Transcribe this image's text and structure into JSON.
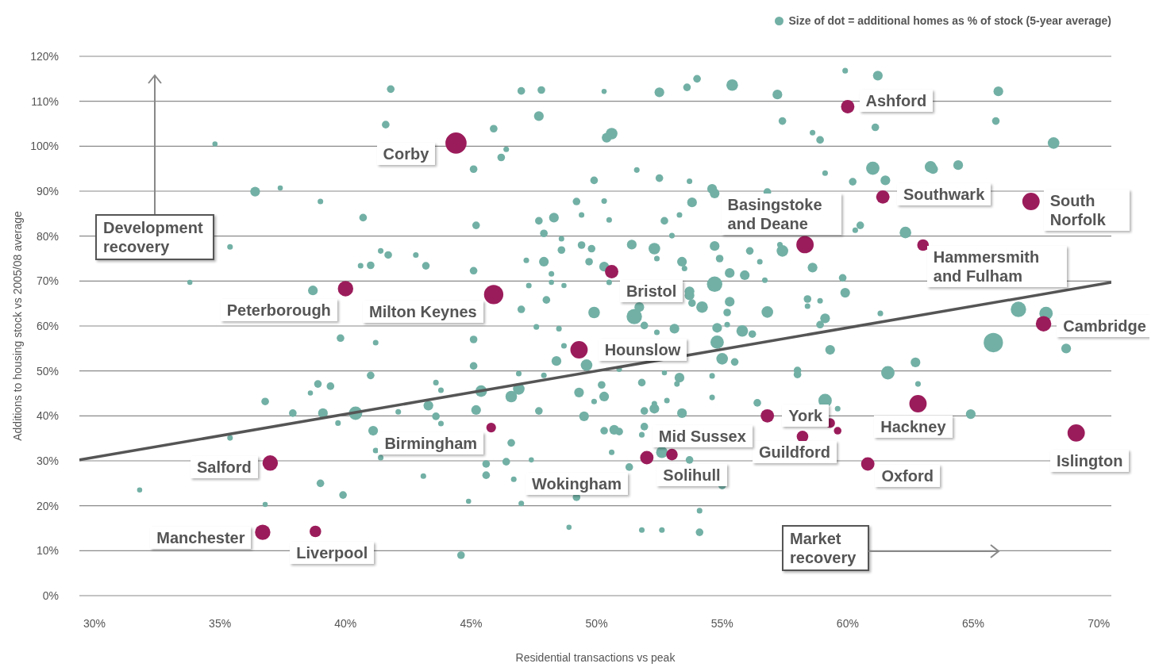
{
  "chart_data": {
    "type": "bubble",
    "xlabel": "Residential transactions vs peak",
    "ylabel": "Additions to housing stock vs 2005/08 average",
    "xlim": [
      29.4,
      70.5
    ],
    "ylim": [
      0,
      120
    ],
    "xticks": [
      {
        "value": 30,
        "label": "30%"
      },
      {
        "value": 35,
        "label": "35%"
      },
      {
        "value": 40,
        "label": "40%"
      },
      {
        "value": 45,
        "label": "45%"
      },
      {
        "value": 50,
        "label": "50%"
      },
      {
        "value": 55,
        "label": "55%"
      },
      {
        "value": 60,
        "label": "60%"
      },
      {
        "value": 65,
        "label": "65%"
      },
      {
        "value": 70,
        "label": "70%"
      }
    ],
    "yticks": [
      {
        "value": 0,
        "label": "0%"
      },
      {
        "value": 10,
        "label": "10%"
      },
      {
        "value": 20,
        "label": "20%"
      },
      {
        "value": 30,
        "label": "30%"
      },
      {
        "value": 40,
        "label": "40%"
      },
      {
        "value": 50,
        "label": "50%"
      },
      {
        "value": 60,
        "label": "60%"
      },
      {
        "value": 70,
        "label": "70%"
      },
      {
        "value": 80,
        "label": "80%"
      },
      {
        "value": 90,
        "label": "90%"
      },
      {
        "value": 100,
        "label": "100%"
      },
      {
        "value": 110,
        "label": "110%"
      },
      {
        "value": 120,
        "label": "120%"
      }
    ],
    "grid": "y",
    "legend": "top right",
    "series": [
      {
        "name": "Size of dot = additional homes as % of stock (5-year average)",
        "color": "#72b0a5",
        "x": [
          31.8,
          34.8,
          33.8,
          35.4,
          36.4,
          37.4,
          35.4,
          36.8,
          36.8,
          37.9,
          38.7,
          39.0,
          38.6,
          38.9,
          39.1,
          39.4,
          39.7,
          39.8,
          39.0,
          39.9,
          40.4,
          40.7,
          40.6,
          41.0,
          41.0,
          41.1,
          41.2,
          41.4,
          41.7,
          41.2,
          41.4,
          41.6,
          41.8,
          42.1,
          42.8,
          43.2,
          43.1,
          43.3,
          43.6,
          43.6,
          43.8,
          43.8,
          44.6,
          44.9,
          45.1,
          45.2,
          45.1,
          45.1,
          45.1,
          45.2,
          45.4,
          45.6,
          45.6,
          45.9,
          46.4,
          46.2,
          46.4,
          46.6,
          46.6,
          46.9,
          46.7,
          46.9,
          47.0,
          47.0,
          47.0,
          47.2,
          47.3,
          47.4,
          47.6,
          47.7,
          47.7,
          47.8,
          47.7,
          47.9,
          47.9,
          47.9,
          48.0,
          48.2,
          48.2,
          48.3,
          48.4,
          48.5,
          null,
          48.6,
          48.6,
          48.7,
          48.7,
          48.9,
          49.2,
          49.2,
          49.3,
          49.4,
          49.4,
          49.5,
          49.6,
          49.7,
          49.8,
          49.9,
          49.9,
          49.9,
          50.3,
          50.2,
          50.3,
          50.3,
          50.3,
          50.4,
          50.6,
          50.5,
          50.3,
          50.5,
          50.7,
          50.9,
          50.6,
          50.9,
          null,
          51.3,
          51.4,
          51.5,
          51.7,
          51.6,
          null,
          51.8,
          51.8,
          51.9,
          51.9,
          51.8,
          51.9,
          null,
          52.3,
          52.4,
          52.5,
          52.5,
          52.3,
          52.3,
          52.4,
          52.6,
          52.7,
          52.7,
          52.8,
          52.6,
          53.0,
          53.1,
          53.2,
          53.3,
          53.3,
          53.4,
          null,
          53.4,
          53.6,
          53.5,
          53.7,
          53.7,
          53.7,
          53.8,
          53.7,
          53.8,
          54.0,
          54.1,
          54.1,
          54.2,
          54.6,
          54.6,
          54.6,
          54.7,
          54.7,
          54.7,
          54.8,
          54.8,
          54.9,
          55.0,
          55.0,
          55.2,
          55.2,
          55.3,
          55.3,
          55.4,
          55.5,
          55.8,
          55.9,
          56.1,
          56.2,
          56.4,
          56.5,
          56.7,
          56.8,
          56.8,
          57.2,
          57.4,
          57.4,
          57.3,
          null,
          58.0,
          58.0,
          58.4,
          58.4,
          58.6,
          58.6,
          58.9,
          58.9,
          58.9,
          59.1,
          59.1,
          59.1,
          59.3,
          59.6,
          59.8,
          59.9,
          59.9,
          60.2,
          60.3,
          60.5,
          61.0,
          61.1,
          61.2,
          61.3,
          61.5,
          61.6,
          62.3,
          62.7,
          62.8,
          63.3,
          64.4,
          64.9,
          65.9,
          66.0,
          65.8,
          66.8,
          67.9,
          68.2,
          68.7,
          63.4
        ],
        "values": [
          23.5,
          100.5,
          69.7,
          77.6,
          89.9,
          90.7,
          35.1,
          43.2,
          20.3,
          40.6,
          67.9,
          87.7,
          45.1,
          47.1,
          40.6,
          46.6,
          38.4,
          57.3,
          25.0,
          22.4,
          40.6,
          84.1,
          73.4,
          73.5,
          49.0,
          36.7,
          32.3,
          76.7,
          75.8,
          56.3,
          30.7,
          104.8,
          112.7,
          40.9,
          75.8,
          73.4,
          26.6,
          42.3,
          39.9,
          47.4,
          38.3,
          45.7,
          9.0,
          21.0,
          72.3,
          82.4,
          94.9,
          57.0,
          51.1,
          41.3,
          45.5,
          29.3,
          26.8,
          103.9,
          99.3,
          97.5,
          29.8,
          34.0,
          44.3,
          46.0,
          25.9,
          49.4,
          63.7,
          112.3,
          20.5,
          74.6,
          69.0,
          30.2,
          59.8,
          41.1,
          106.7,
          112.5,
          83.4,
          74.3,
          49.0,
          80.6,
          65.8,
          71.6,
          69.7,
          84.1,
          52.2,
          59.4,
          null,
          76.9,
          79.4,
          69.0,
          55.6,
          15.2,
          87.7,
          21.9,
          45.2,
          78.0,
          84.7,
          39.9,
          51.3,
          74.3,
          77.2,
          63.0,
          43.2,
          92.4,
          87.8,
          46.9,
          44.3,
          36.7,
          112.2,
          101.9,
          102.8,
          83.6,
          73.2,
          69.7,
          36.9,
          36.5,
          31.9,
          50.4,
          null,
          28.6,
          78.1,
          62.1,
          64.2,
          94.7,
          null,
          35.8,
          14.6,
          37.6,
          41.1,
          47.4,
          60.1,
          null,
          77.2,
          75.0,
          112.0,
          92.9,
          41.6,
          42.7,
          58.6,
          14.6,
          83.4,
          49.6,
          43.4,
          31.9,
          80.1,
          59.4,
          47.1,
          84.7,
          48.5,
          40.6,
          null,
          74.3,
          113.1,
          72.8,
          66.8,
          30.2,
          67.7,
          65.1,
          92.2,
          87.5,
          115.0,
          14.1,
          18.9,
          64.2,
          48.9,
          44.1,
          90.5,
          89.5,
          69.3,
          77.8,
          59.6,
          56.4,
          75.0,
          52.7,
          24.5,
          63.0,
          60.3,
          65.4,
          71.8,
          113.6,
          52.0,
          58.9,
          71.3,
          76.7,
          58.2,
          42.9,
          74.3,
          70.2,
          63.1,
          89.8,
          111.5,
          105.6,
          76.7,
          78.1,
          null,
          50.1,
          49.2,
          64.4,
          66.0,
          103.0,
          73.0,
          101.4,
          65.6,
          60.3,
          61.7,
          94.0,
          43.4,
          54.7,
          41.6,
          70.7,
          67.4,
          116.8,
          92.1,
          81.3,
          82.4,
          95.1,
          104.2,
          115.7,
          62.8,
          92.4,
          49.6,
          80.8,
          51.9,
          47.1,
          95.4,
          95.8,
          40.4,
          105.6,
          112.2,
          56.3,
          63.7,
          62.8,
          100.7,
          55.0,
          94.9
        ],
        "sizes": [
          0.06,
          0.06,
          0.06,
          0.07,
          0.21,
          0.06,
          0.07,
          0.13,
          0.06,
          0.13,
          0.21,
          0.07,
          0.06,
          0.13,
          0.21,
          0.13,
          0.07,
          0.13,
          0.13,
          0.13,
          0.4,
          0.13,
          0.07,
          0.13,
          0.13,
          0.21,
          0.07,
          0.07,
          0.13,
          0.07,
          0.07,
          0.13,
          0.13,
          0.07,
          0.07,
          0.13,
          0.07,
          0.21,
          0.13,
          0.07,
          0.07,
          0.07,
          0.13,
          0.06,
          0.13,
          0.13,
          0.13,
          0.13,
          0.13,
          0.21,
          0.3,
          0.13,
          0.13,
          0.13,
          0.07,
          0.13,
          0.13,
          0.13,
          0.3,
          0.3,
          0.07,
          0.07,
          0.13,
          0.13,
          0.07,
          0.07,
          0.07,
          0.06,
          0.07,
          0.13,
          0.21,
          0.13,
          0.13,
          0.21,
          0.07,
          0.13,
          0.13,
          0.07,
          0.06,
          0.21,
          0.21,
          0.07,
          null,
          0.13,
          0.07,
          0.06,
          0.07,
          0.06,
          0.13,
          0.13,
          0.21,
          0.13,
          0.07,
          0.21,
          0.3,
          0.13,
          0.13,
          0.3,
          0.07,
          0.13,
          0.07,
          0.13,
          0.21,
          0.13,
          0.06,
          0.21,
          0.3,
          0.07,
          0.21,
          0.07,
          0.21,
          0.13,
          0.07,
          0.07,
          null,
          0.13,
          0.21,
          0.53,
          0.21,
          0.07,
          null,
          0.07,
          0.07,
          0.13,
          0.13,
          0.13,
          0.13,
          null,
          0.3,
          0.07,
          0.21,
          0.13,
          0.21,
          0.07,
          0.07,
          0.07,
          0.13,
          0.06,
          0.07,
          0.3,
          0.07,
          0.21,
          0.07,
          0.07,
          0.21,
          0.21,
          null,
          0.21,
          0.13,
          0.07,
          0.21,
          0.13,
          0.21,
          0.13,
          0.07,
          0.21,
          0.13,
          0.13,
          0.07,
          0.3,
          0.07,
          0.07,
          0.21,
          0.21,
          0.53,
          0.21,
          0.21,
          0.4,
          0.13,
          0.3,
          0.13,
          0.13,
          0.07,
          0.21,
          0.21,
          0.3,
          0.13,
          0.3,
          0.21,
          0.13,
          0.13,
          0.13,
          0.07,
          0.07,
          0.3,
          0.13,
          0.21,
          0.13,
          0.3,
          0.07,
          null,
          0.13,
          0.13,
          0.07,
          0.13,
          0.07,
          0.21,
          0.13,
          0.07,
          0.13,
          0.21,
          0.07,
          0.4,
          0.21,
          0.07,
          0.13,
          0.21,
          0.07,
          0.13,
          0.07,
          0.13,
          0.4,
          0.13,
          0.21,
          0.07,
          0.21,
          0.4,
          0.3,
          0.21,
          0.07,
          0.3,
          0.21,
          0.21,
          0.13,
          0.21,
          0.83,
          0.53,
          0.4,
          0.3,
          0.21,
          0.21
        ]
      },
      {
        "color": "#9b1c5b",
        "x": [
          60.0,
          44.4,
          61.4,
          67.3,
          58.3,
          63.0,
          40.0,
          45.9,
          50.6,
          67.8,
          49.3,
          62.8,
          56.8,
          59.3,
          59.6,
          58.2,
          69.1,
          60.8,
          37.0,
          53.0,
          52.0,
          45.8,
          36.7,
          38.8
        ],
        "values": [
          108.8,
          100.7,
          88.7,
          87.7,
          78.1,
          78.0,
          68.3,
          67.0,
          72.1,
          60.5,
          54.7,
          42.7,
          40.0,
          38.4,
          36.7,
          35.4,
          36.2,
          29.3,
          29.5,
          31.4,
          30.7,
          37.4,
          14.1,
          14.3
        ],
        "sizes": [
          0.4,
          1,
          0.4,
          0.67,
          0.67,
          0.3,
          0.53,
          0.83,
          0.4,
          0.53,
          0.67,
          0.67,
          0.4,
          0.21,
          0.13,
          0.3,
          0.67,
          0.4,
          0.53,
          0.3,
          0.4,
          0.21,
          0.53,
          0.3
        ]
      },
      {
        "type": "line",
        "color": "#555555",
        "x": [
          29.4,
          70.5
        ],
        "values": [
          30.2,
          69.7
        ]
      }
    ],
    "annotations": [
      {
        "text": "Ashford",
        "x": 60.0,
        "y": 108.8
      },
      {
        "text": "Corby",
        "x": 44.4,
        "y": 100.7
      },
      {
        "text": "Southwark",
        "x": 61.4,
        "y": 88.7
      },
      {
        "text": "South Norfolk",
        "x": 67.3,
        "y": 87.7
      },
      {
        "text": "Basingstoke and Deane",
        "x": 58.3,
        "y": 78.1
      },
      {
        "text": "Hammersmith and Fulham",
        "x": 63.0,
        "y": 78.0
      },
      {
        "text": "Peterborough",
        "x": 40.0,
        "y": 68.3
      },
      {
        "text": "Milton Keynes",
        "x": 45.9,
        "y": 67.0
      },
      {
        "text": "Bristol",
        "x": 50.6,
        "y": 72.1
      },
      {
        "text": "Cambridge",
        "x": 67.8,
        "y": 60.5
      },
      {
        "text": "Hounslow",
        "x": 49.3,
        "y": 54.7
      },
      {
        "text": "Hackney",
        "x": 62.8,
        "y": 42.7
      },
      {
        "text": "York",
        "x": 56.8,
        "y": 40.0
      },
      {
        "text": "Guildford",
        "x": 58.2,
        "y": 35.4
      },
      {
        "text": "Islington",
        "x": 69.1,
        "y": 36.2
      },
      {
        "text": "Oxford",
        "x": 60.8,
        "y": 29.3
      },
      {
        "text": "Salford",
        "x": 37.0,
        "y": 29.5
      },
      {
        "text": "Solihull",
        "x": 53.0,
        "y": 31.4
      },
      {
        "text": "Mid Sussex",
        "x": 52.0,
        "y": 30.7
      },
      {
        "text": "Birmingham",
        "x": 45.8,
        "y": 37.4
      },
      {
        "text": "Manchester",
        "x": 36.7,
        "y": 14.1
      },
      {
        "text": "Liverpool",
        "x": 38.8,
        "y": 14.3
      },
      "Wokingham",
      "Development recovery",
      "Market recovery"
    ]
  }
}
